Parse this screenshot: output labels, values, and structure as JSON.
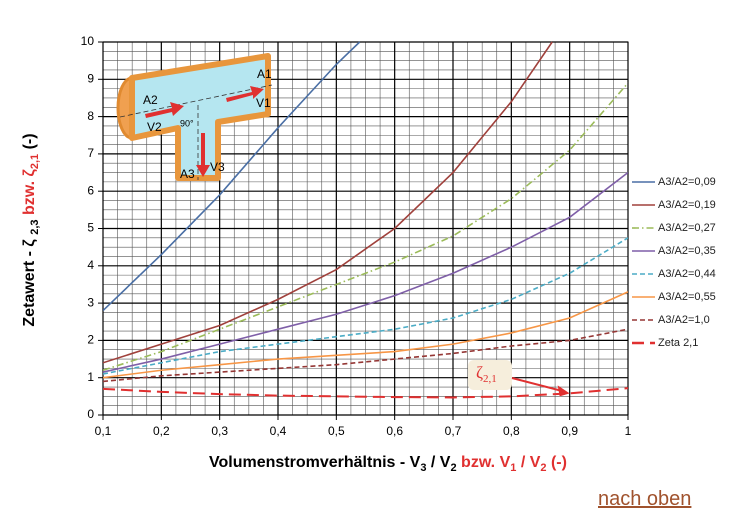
{
  "chart_data": {
    "type": "line",
    "y_label": [
      "Zetawert - ζ ",
      "2,3",
      " bzw. ζ",
      "2,1",
      " (-)"
    ],
    "x_label": [
      "Volumenstromverhältnis - V",
      "3",
      " / V",
      "2",
      " bzw. V",
      "1",
      " / V",
      "2",
      " (-)"
    ],
    "xlim": [
      0.1,
      1
    ],
    "ylim": [
      0,
      10
    ],
    "xticks": [
      {
        "value": 0.1,
        "label": "0,1"
      },
      {
        "value": 0.2,
        "label": "0,2"
      },
      {
        "value": 0.3,
        "label": "0,3"
      },
      {
        "value": 0.4,
        "label": "0,4"
      },
      {
        "value": 0.5,
        "label": "0,5"
      },
      {
        "value": 0.6,
        "label": "0,6"
      },
      {
        "value": 0.7,
        "label": "0,7"
      },
      {
        "value": 0.8,
        "label": "0,8"
      },
      {
        "value": 0.9,
        "label": "0,9"
      },
      {
        "value": 1,
        "label": "1"
      }
    ],
    "yticks": [
      0,
      1,
      2,
      3,
      4,
      5,
      6,
      7,
      8,
      9,
      10
    ],
    "grid": true,
    "legend": "right",
    "series": [
      {
        "name": "A3/A2=0,09",
        "color": "#4a6fa5",
        "dash": "solid",
        "x": [
          0.1,
          0.2,
          0.3,
          0.4,
          0.5,
          0.54
        ],
        "values": [
          2.8,
          4.3,
          5.9,
          7.7,
          9.4,
          10
        ]
      },
      {
        "name": "A3/A2=0,19",
        "color": "#a0413c",
        "dash": "solid",
        "x": [
          0.1,
          0.2,
          0.3,
          0.4,
          0.5,
          0.6,
          0.7,
          0.8,
          0.87
        ],
        "values": [
          1.4,
          1.9,
          2.4,
          3.1,
          3.9,
          5.0,
          6.5,
          8.4,
          10
        ]
      },
      {
        "name": "A3/A2=0,27",
        "color": "#9bbb59",
        "dash": "dashdot",
        "x": [
          0.1,
          0.2,
          0.3,
          0.4,
          0.5,
          0.6,
          0.7,
          0.8,
          0.9,
          1
        ],
        "values": [
          1.2,
          1.7,
          2.3,
          2.9,
          3.5,
          4.1,
          4.8,
          5.8,
          7.1,
          8.9
        ]
      },
      {
        "name": "A3/A2=0,35",
        "color": "#7f5fa8",
        "dash": "solid",
        "x": [
          0.1,
          0.2,
          0.3,
          0.4,
          0.5,
          0.6,
          0.7,
          0.8,
          0.9,
          1
        ],
        "values": [
          1.15,
          1.5,
          1.9,
          2.3,
          2.7,
          3.2,
          3.8,
          4.5,
          5.3,
          6.5
        ]
      },
      {
        "name": "A3/A2=0,44",
        "color": "#4bacc6",
        "dash": "dashed",
        "x": [
          0.1,
          0.2,
          0.3,
          0.4,
          0.5,
          0.6,
          0.7,
          0.8,
          0.9,
          1
        ],
        "values": [
          1.1,
          1.4,
          1.7,
          1.9,
          2.1,
          2.3,
          2.6,
          3.1,
          3.8,
          4.75
        ]
      },
      {
        "name": "A3/A2=0,55",
        "color": "#f79646",
        "dash": "solid",
        "x": [
          0.1,
          0.2,
          0.3,
          0.4,
          0.5,
          0.6,
          0.7,
          0.8,
          0.9,
          1
        ],
        "values": [
          1.0,
          1.2,
          1.35,
          1.5,
          1.6,
          1.7,
          1.9,
          2.2,
          2.6,
          3.3
        ]
      },
      {
        "name": "A3/A2=1,0",
        "color": "#953735",
        "dash": "dashed",
        "x": [
          0.1,
          0.2,
          0.3,
          0.4,
          0.5,
          0.6,
          0.7,
          0.8,
          0.9,
          1
        ],
        "values": [
          0.9,
          1.05,
          1.15,
          1.25,
          1.35,
          1.5,
          1.65,
          1.85,
          2.0,
          2.3
        ]
      },
      {
        "name": "Zeta 2,1",
        "color": "#e03030",
        "dash": "longdash",
        "x": [
          0.1,
          0.2,
          0.3,
          0.4,
          0.5,
          0.6,
          0.7,
          0.8,
          0.9,
          1
        ],
        "values": [
          0.7,
          0.62,
          0.56,
          0.52,
          0.5,
          0.48,
          0.47,
          0.5,
          0.58,
          0.72
        ]
      }
    ],
    "annotation": {
      "symbol": "ζ",
      "subscript": "2,1"
    }
  },
  "diagram": {
    "labels": [
      "A1",
      "V1",
      "A2",
      "V2",
      "90°",
      "A3",
      "V3"
    ]
  },
  "link": "nach oben"
}
